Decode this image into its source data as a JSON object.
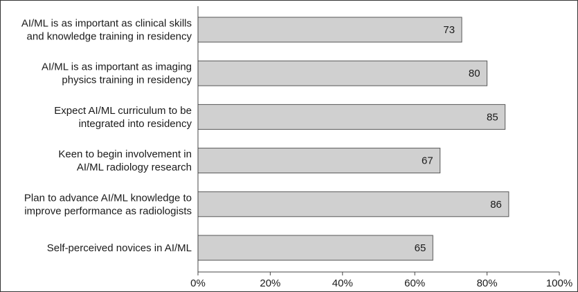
{
  "chart_data": {
    "type": "bar",
    "orientation": "horizontal",
    "categories": [
      [
        "AI/ML is as important as clinical skills",
        "and knowledge training in residency"
      ],
      [
        "AI/ML is as important as imaging",
        "physics training in residency"
      ],
      [
        "Expect AI/ML curriculum to be",
        "integrated into residency"
      ],
      [
        "Keen to begin involvement in",
        "AI/ML radiology research"
      ],
      [
        "Plan to advance AI/ML knowledge to",
        "improve performance as radiologists"
      ],
      [
        "Self-perceived novices in AI/ML"
      ]
    ],
    "values": [
      73,
      80,
      85,
      67,
      86,
      65
    ],
    "data_labels": [
      "73",
      "80",
      "85",
      "67",
      "86",
      "65"
    ],
    "xlim": [
      0,
      100
    ],
    "x_ticks": [
      0,
      20,
      40,
      60,
      80,
      100
    ],
    "x_tick_labels": [
      "0%",
      "20%",
      "40%",
      "60%",
      "80%",
      "100%"
    ],
    "grid": false,
    "legend": "none",
    "colors": {
      "bar_fill": "#d0d0d0",
      "bar_stroke": "#555555",
      "axis": "#444444",
      "text": "#1a1a1a",
      "frame": "#333333"
    }
  }
}
